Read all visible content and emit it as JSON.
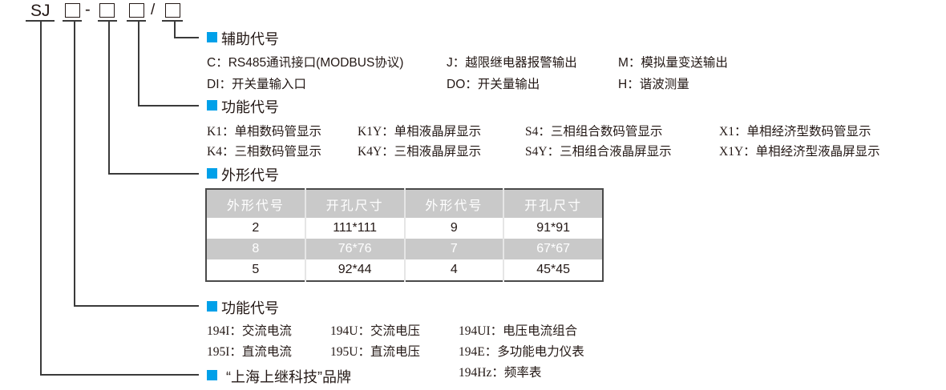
{
  "model": {
    "prefix": "SJ",
    "dash": "-",
    "slash": "/"
  },
  "accent": "#00a0e9",
  "aux": {
    "title": "辅助代号",
    "items": [
      "C：RS485通讯接口(MODBUS协议)",
      "J：越限继电器报警输出",
      "M：模拟量变送输出",
      "DI：开关量输入口",
      "DO：开关量输出",
      "H：谐波测量"
    ]
  },
  "display": {
    "title": "功能代号",
    "items": [
      "K1：单相数码管显示",
      "K1Y：单相液晶屏显示",
      "S4：三相组合数码管显示",
      "X1：单相经济型数码管显示",
      "K4：三相数码管显示",
      "K4Y：三相液晶屏显示",
      "S4Y：三相组合液晶屏显示",
      "X1Y：单相经济型液晶屏显示"
    ]
  },
  "shape": {
    "title": "外形代号",
    "headers": [
      "外形代号",
      "开孔尺寸",
      "外形代号",
      "开孔尺寸"
    ],
    "rows": [
      [
        "2",
        "111*111",
        "9",
        "91*91"
      ],
      [
        "8",
        "76*76",
        "7",
        "67*67"
      ],
      [
        "5",
        "92*44",
        "4",
        "45*45"
      ]
    ]
  },
  "function": {
    "title": "功能代号",
    "items": [
      "194I：交流电流",
      "194U：交流电压",
      "194UI：电压电流组合",
      "195I：直流电流",
      "195U：直流电压",
      "194E：多功能电力仪表",
      "194Hz：频率表"
    ]
  },
  "brand": {
    "title": "“上海上继科技”品牌"
  }
}
